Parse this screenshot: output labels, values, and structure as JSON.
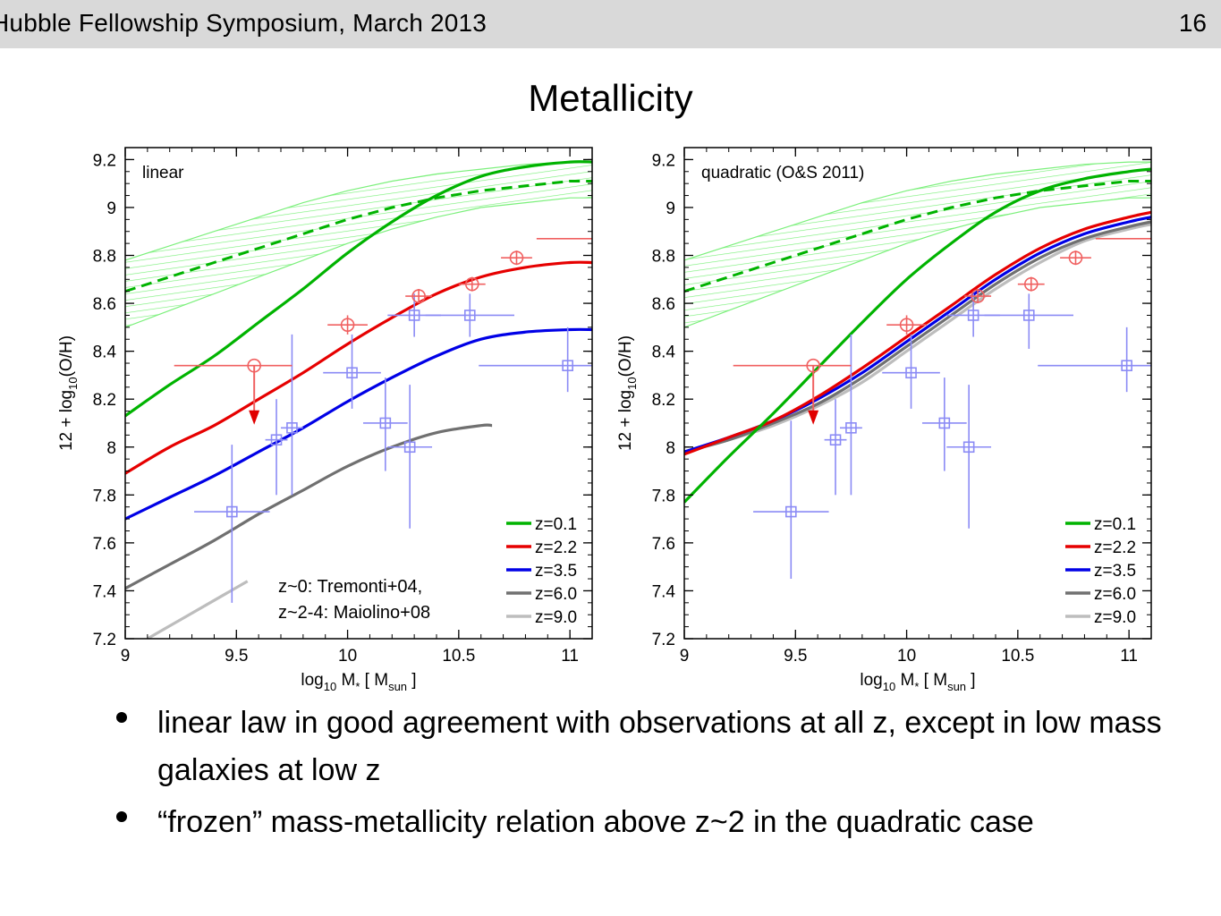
{
  "header": {
    "title": "Hubble Fellowship Symposium, March 2013",
    "page_number": "16"
  },
  "slide_title": "Metallicity",
  "reference_note": {
    "line1": "z~0: Tremonti+04,",
    "line2": "z~2-4: Maiolino+08"
  },
  "bullets": [
    "linear law in good agreement with observations at all z, except in low mass galaxies at low z",
    "“frozen” mass-metallicity relation above z~2 in the quadratic case"
  ],
  "colors": {
    "z0_1": "#00b300",
    "z2_2": "#e60000",
    "z3_5": "#0000e6",
    "z6_0": "#707070",
    "z9_0": "#bdbdbd",
    "band": "#7cf07c",
    "obs_highz": "#8b8bf5",
    "obs_lowz": "#f06060"
  },
  "chart_data": [
    {
      "type": "line",
      "panel_label": "linear",
      "xlabel": "log10 M* [ Msun ]",
      "ylabel": "12 + log10(O/H)",
      "xlim": [
        9,
        11.1
      ],
      "ylim": [
        7.2,
        9.25
      ],
      "xticks": [
        "9",
        "9.5",
        "10",
        "10.5",
        "11"
      ],
      "yticks": [
        "7.2",
        "7.4",
        "7.6",
        "7.8",
        "8",
        "8.2",
        "8.4",
        "8.6",
        "8.8",
        "9",
        "9.2"
      ],
      "legend_position": "bottom-right",
      "series": [
        {
          "name": "z=0.1",
          "x": [
            9.0,
            9.2,
            9.4,
            9.6,
            9.8,
            10.0,
            10.2,
            10.4,
            10.6,
            10.8,
            11.0,
            11.1
          ],
          "y": [
            8.13,
            8.26,
            8.38,
            8.52,
            8.66,
            8.81,
            8.94,
            9.05,
            9.13,
            9.17,
            9.19,
            9.19
          ]
        },
        {
          "name": "z=2.2",
          "x": [
            9.0,
            9.2,
            9.4,
            9.6,
            9.8,
            10.0,
            10.2,
            10.4,
            10.6,
            10.8,
            11.0,
            11.1
          ],
          "y": [
            7.89,
            8.0,
            8.09,
            8.2,
            8.31,
            8.43,
            8.54,
            8.64,
            8.71,
            8.75,
            8.77,
            8.77
          ]
        },
        {
          "name": "z=3.5",
          "x": [
            9.0,
            9.2,
            9.4,
            9.6,
            9.8,
            10.0,
            10.2,
            10.4,
            10.6,
            10.8,
            11.0,
            11.1
          ],
          "y": [
            7.7,
            7.79,
            7.88,
            7.98,
            8.08,
            8.19,
            8.29,
            8.38,
            8.45,
            8.48,
            8.49,
            8.49
          ]
        },
        {
          "name": "z=6.0",
          "x": [
            9.0,
            9.2,
            9.4,
            9.6,
            9.8,
            10.0,
            10.2,
            10.4,
            10.6,
            10.65
          ],
          "y": [
            7.41,
            7.51,
            7.61,
            7.72,
            7.82,
            7.92,
            8.0,
            8.06,
            8.09,
            8.09
          ]
        },
        {
          "name": "z=9.0",
          "x": [
            9.1,
            9.25,
            9.4,
            9.55
          ],
          "y": [
            7.2,
            7.28,
            7.36,
            7.44
          ]
        }
      ],
      "observations": {
        "z_high": [
          {
            "x": 9.48,
            "y": 7.73,
            "x_err": [
              0.17,
              0.17
            ],
            "y_err": [
              0.38,
              0.28
            ]
          },
          {
            "x": 9.68,
            "y": 8.03,
            "x_err": [
              0.05,
              0.05
            ],
            "y_err": [
              0.23,
              0.17
            ]
          },
          {
            "x": 9.75,
            "y": 8.08,
            "x_err": [
              0.05,
              0.05
            ],
            "y_err": [
              0.28,
              0.39
            ]
          },
          {
            "x": 10.02,
            "y": 8.31,
            "x_err": [
              0.13,
              0.13
            ],
            "y_err": [
              0.15,
              0.16
            ]
          },
          {
            "x": 10.17,
            "y": 8.1,
            "x_err": [
              0.1,
              0.1
            ],
            "y_err": [
              0.2,
              0.19
            ]
          },
          {
            "x": 10.28,
            "y": 8.0,
            "x_err": [
              0.1,
              0.1
            ],
            "y_err": [
              0.34,
              0.26
            ]
          },
          {
            "x": 10.3,
            "y": 8.55,
            "x_err": [
              0.12,
              0.12
            ],
            "y_err": [
              0.09,
              0.09
            ]
          },
          {
            "x": 10.55,
            "y": 8.55,
            "x_err": [
              0.2,
              0.2
            ],
            "y_err": [
              0.09,
              0.09
            ]
          },
          {
            "x": 10.99,
            "y": 8.34,
            "x_err": [
              0.4,
              0.4
            ],
            "y_err": [
              0.11,
              0.16
            ]
          }
        ],
        "z_low": [
          {
            "x": 9.58,
            "y": 8.34,
            "x_err": [
              0.36,
              0.17
            ],
            "upper_limit": true
          },
          {
            "x": 10.0,
            "y": 8.51,
            "x_err": [
              0.09,
              0.09
            ],
            "y_err": [
              0.04,
              0.04
            ]
          },
          {
            "x": 10.32,
            "y": 8.63,
            "x_err": [
              0.06,
              0.06
            ],
            "y_err": [
              0.03,
              0.03
            ]
          },
          {
            "x": 10.56,
            "y": 8.68,
            "x_err": [
              0.06,
              0.06
            ],
            "y_err": [
              0.03,
              0.03
            ]
          },
          {
            "x": 10.76,
            "y": 8.79,
            "x_err": [
              0.07,
              0.07
            ],
            "y_err": [
              0.03,
              0.03
            ]
          },
          {
            "x": 11.0,
            "y": 8.87,
            "x_err": [
              0.15,
              0.15
            ]
          }
        ]
      },
      "tremonti_band": {
        "x": [
          9.0,
          9.2,
          9.4,
          9.6,
          9.8,
          10.0,
          10.2,
          10.4,
          10.6,
          10.8,
          11.0,
          11.1
        ],
        "median": [
          8.65,
          8.71,
          8.77,
          8.83,
          8.89,
          8.95,
          9.0,
          9.04,
          9.07,
          9.09,
          9.11,
          9.11
        ],
        "lower": [
          8.5,
          8.57,
          8.64,
          8.71,
          8.78,
          8.85,
          8.91,
          8.96,
          9.0,
          9.02,
          9.04,
          9.04
        ],
        "upper": [
          8.78,
          8.84,
          8.9,
          8.96,
          9.02,
          9.07,
          9.11,
          9.14,
          9.16,
          9.18,
          9.19,
          9.19
        ]
      }
    },
    {
      "type": "line",
      "panel_label": "quadratic (O&S 2011)",
      "xlabel": "log10 M* [ Msun ]",
      "ylabel": "12 + log10(O/H)",
      "xlim": [
        9,
        11.1
      ],
      "ylim": [
        7.2,
        9.25
      ],
      "xticks": [
        "9",
        "9.5",
        "10",
        "10.5",
        "11"
      ],
      "yticks": [
        "7.2",
        "7.4",
        "7.6",
        "7.8",
        "8",
        "8.2",
        "8.4",
        "8.6",
        "8.8",
        "9",
        "9.2"
      ],
      "legend_position": "bottom-right",
      "series": [
        {
          "name": "z=0.1",
          "x": [
            9.0,
            9.2,
            9.4,
            9.6,
            9.8,
            10.0,
            10.2,
            10.4,
            10.6,
            10.8,
            11.0,
            11.1
          ],
          "y": [
            7.77,
            7.96,
            8.14,
            8.33,
            8.52,
            8.7,
            8.85,
            8.98,
            9.07,
            9.12,
            9.15,
            9.16
          ]
        },
        {
          "name": "z=2.2",
          "x": [
            9.0,
            9.2,
            9.4,
            9.6,
            9.8,
            10.0,
            10.2,
            10.4,
            10.6,
            10.8,
            11.0,
            11.1
          ],
          "y": [
            7.97,
            8.04,
            8.11,
            8.21,
            8.33,
            8.46,
            8.59,
            8.72,
            8.83,
            8.91,
            8.96,
            8.98
          ]
        },
        {
          "name": "z=3.5",
          "x": [
            9.0,
            9.2,
            9.4,
            9.6,
            9.8,
            10.0,
            10.2,
            10.4,
            10.6,
            10.8,
            11.0,
            11.1
          ],
          "y": [
            7.98,
            8.04,
            8.11,
            8.2,
            8.31,
            8.44,
            8.57,
            8.7,
            8.81,
            8.89,
            8.94,
            8.96
          ]
        },
        {
          "name": "z=6.0",
          "x": [
            9.0,
            9.2,
            9.4,
            9.6,
            9.8,
            10.0,
            10.2,
            10.4,
            10.6,
            10.8,
            11.0,
            11.1
          ],
          "y": [
            7.98,
            8.03,
            8.1,
            8.18,
            8.29,
            8.42,
            8.55,
            8.68,
            8.79,
            8.87,
            8.92,
            8.94
          ]
        },
        {
          "name": "z=9.0",
          "x": [
            9.0,
            9.2,
            9.4,
            9.6,
            9.8,
            10.0,
            10.2,
            10.4,
            10.6,
            10.8,
            11.0,
            11.1
          ],
          "y": [
            7.98,
            8.03,
            8.09,
            8.17,
            8.27,
            8.4,
            8.53,
            8.66,
            8.77,
            8.86,
            8.91,
            8.93
          ]
        }
      ],
      "observations": {
        "z_high": [
          {
            "x": 9.48,
            "y": 7.73,
            "x_err": [
              0.17,
              0.17
            ],
            "y_err": [
              0.28,
              0.38
            ]
          },
          {
            "x": 9.68,
            "y": 8.03,
            "x_err": [
              0.05,
              0.05
            ],
            "y_err": [
              0.23,
              0.17
            ]
          },
          {
            "x": 9.75,
            "y": 8.08,
            "x_err": [
              0.05,
              0.05
            ],
            "y_err": [
              0.28,
              0.39
            ]
          },
          {
            "x": 10.02,
            "y": 8.31,
            "x_err": [
              0.13,
              0.13
            ],
            "y_err": [
              0.15,
              0.16
            ]
          },
          {
            "x": 10.17,
            "y": 8.1,
            "x_err": [
              0.1,
              0.1
            ],
            "y_err": [
              0.2,
              0.19
            ]
          },
          {
            "x": 10.28,
            "y": 8.0,
            "x_err": [
              0.1,
              0.1
            ],
            "y_err": [
              0.34,
              0.26
            ]
          },
          {
            "x": 10.3,
            "y": 8.55,
            "x_err": [
              0.12,
              0.12
            ],
            "y_err": [
              0.09,
              0.09
            ]
          },
          {
            "x": 10.55,
            "y": 8.55,
            "x_err": [
              0.2,
              0.2
            ],
            "y_err": [
              0.14,
              0.09
            ]
          },
          {
            "x": 10.99,
            "y": 8.34,
            "x_err": [
              0.4,
              0.4
            ],
            "y_err": [
              0.11,
              0.16
            ]
          }
        ],
        "z_low": [
          {
            "x": 9.58,
            "y": 8.34,
            "x_err": [
              0.36,
              0.17
            ],
            "upper_limit": true
          },
          {
            "x": 10.0,
            "y": 8.51,
            "x_err": [
              0.09,
              0.09
            ],
            "y_err": [
              0.04,
              0.04
            ]
          },
          {
            "x": 10.32,
            "y": 8.63,
            "x_err": [
              0.06,
              0.06
            ],
            "y_err": [
              0.03,
              0.03
            ]
          },
          {
            "x": 10.56,
            "y": 8.68,
            "x_err": [
              0.06,
              0.06
            ],
            "y_err": [
              0.03,
              0.03
            ]
          },
          {
            "x": 10.76,
            "y": 8.79,
            "x_err": [
              0.07,
              0.07
            ],
            "y_err": [
              0.03,
              0.03
            ]
          },
          {
            "x": 11.0,
            "y": 8.87,
            "x_err": [
              0.15,
              0.15
            ]
          }
        ]
      },
      "tremonti_band": {
        "x": [
          9.0,
          9.2,
          9.4,
          9.6,
          9.8,
          10.0,
          10.2,
          10.4,
          10.6,
          10.8,
          11.0,
          11.1
        ],
        "median": [
          8.65,
          8.71,
          8.77,
          8.83,
          8.89,
          8.95,
          9.0,
          9.04,
          9.07,
          9.09,
          9.11,
          9.11
        ],
        "lower": [
          8.5,
          8.57,
          8.64,
          8.71,
          8.78,
          8.85,
          8.91,
          8.96,
          9.0,
          9.02,
          9.04,
          9.04
        ],
        "upper": [
          8.78,
          8.84,
          8.9,
          8.96,
          9.02,
          9.07,
          9.11,
          9.14,
          9.16,
          9.18,
          9.19,
          9.19
        ]
      }
    }
  ]
}
